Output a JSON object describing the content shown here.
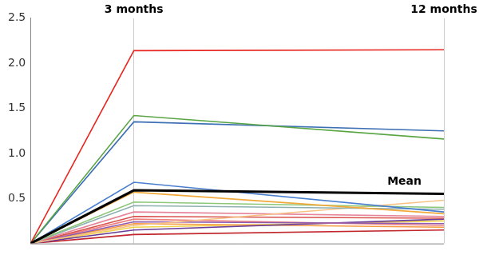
{
  "chart_data": {
    "type": "line",
    "x": [
      0,
      3,
      12
    ],
    "xlim": [
      0,
      12
    ],
    "xticks": [
      {
        "value": 3,
        "label": "3 months"
      },
      {
        "value": 12,
        "label": "12 months"
      }
    ],
    "ylim": [
      0,
      2.5
    ],
    "yticks": [
      0.5,
      {
        "value": 1,
        "label": "1.0"
      },
      1.5,
      {
        "value": 2,
        "label": "2.0"
      },
      2.5
    ],
    "grid": "x",
    "series": [
      {
        "color": "#e8261f",
        "values": [
          0,
          2.14,
          2.15
        ]
      },
      {
        "color": "#5aa544",
        "values": [
          0,
          1.42,
          1.16
        ]
      },
      {
        "color": "#3c6fb4",
        "values": [
          0,
          1.35,
          1.25
        ]
      },
      {
        "color": "#4a7fd0",
        "values": [
          0,
          0.68,
          0.35
        ]
      },
      {
        "name": "Mean",
        "color": "#000000",
        "line_style": "thick",
        "values": [
          0,
          0.59,
          0.55
        ]
      },
      {
        "color": "#f2a93b",
        "values": [
          0,
          0.57,
          0.33
        ]
      },
      {
        "color": "#8cc878",
        "values": [
          0,
          0.46,
          0.4
        ]
      },
      {
        "color": "#8fb0b0",
        "values": [
          0,
          0.42,
          0.38
        ]
      },
      {
        "color": "#f7c285",
        "values": [
          0,
          0.2,
          0.48
        ]
      },
      {
        "color": "#e6849a",
        "values": [
          0,
          0.35,
          0.3
        ]
      },
      {
        "color": "#d9534f",
        "values": [
          0,
          0.3,
          0.28
        ]
      },
      {
        "color": "#8e5bb0",
        "values": [
          0,
          0.24,
          0.22
        ]
      },
      {
        "color": "#f08080",
        "values": [
          0,
          0.27,
          0.2
        ]
      },
      {
        "color": "#6a3d9a",
        "values": [
          0,
          0.15,
          0.27
        ]
      },
      {
        "color": "#f59b42",
        "values": [
          0,
          0.22,
          0.18
        ]
      },
      {
        "color": "#f0d34a",
        "values": [
          0,
          0.18,
          0.25
        ]
      },
      {
        "color": "#c0262c",
        "values": [
          0,
          0.1,
          0.15
        ]
      }
    ]
  }
}
